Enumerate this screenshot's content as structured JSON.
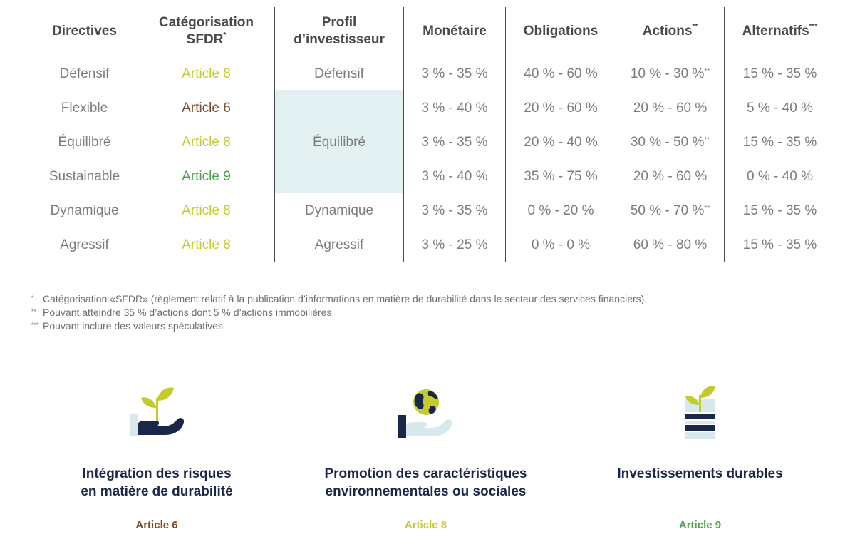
{
  "table": {
    "headers": [
      {
        "label": "Directives",
        "sup": ""
      },
      {
        "label": "Catégorisation SFDR",
        "sup": "*"
      },
      {
        "label": "Profil d’investisseur",
        "sup": ""
      },
      {
        "label": "Monétaire",
        "sup": ""
      },
      {
        "label": "Obligations",
        "sup": ""
      },
      {
        "label": "Actions",
        "sup": "**"
      },
      {
        "label": "Alternatifs",
        "sup": "***"
      }
    ],
    "rows": [
      {
        "directive": "Défensif",
        "sfdr": "Article 8",
        "sfdr_class": "a8",
        "monetaire": "3 % - 35 %",
        "obligations": "40 % - 60 %",
        "actions": "10 % - 30 %",
        "actions_sup": "**",
        "alternatifs": "15 % - 35 %"
      },
      {
        "directive": "Flexible",
        "sfdr": "Article 6",
        "sfdr_class": "a6",
        "monetaire": "3 % - 40 %",
        "obligations": "20 % - 60 %",
        "actions": "20 % - 60 %",
        "actions_sup": "",
        "alternatifs": "5 % - 40 %"
      },
      {
        "directive": "Équilibré",
        "sfdr": "Article 8",
        "sfdr_class": "a8",
        "monetaire": "3 % - 35 %",
        "obligations": "20 % - 40 %",
        "actions": "30 % - 50 %",
        "actions_sup": "**",
        "alternatifs": "15 % - 35 %"
      },
      {
        "directive": "Sustainable",
        "sfdr": "Article 9",
        "sfdr_class": "a9",
        "monetaire": "3 % - 40 %",
        "obligations": "35 % - 75 %",
        "actions": "20 % - 60 %",
        "actions_sup": "",
        "alternatifs": "0 % - 40 %"
      },
      {
        "directive": "Dynamique",
        "sfdr": "Article 8",
        "sfdr_class": "a8",
        "monetaire": "3 % - 35 %",
        "obligations": "0 % - 20 %",
        "actions": "50 % - 70 %",
        "actions_sup": "**",
        "alternatifs": "15 % - 35 %"
      },
      {
        "directive": "Agressif",
        "sfdr": "Article 8",
        "sfdr_class": "a8",
        "monetaire": "3 % - 25 %",
        "obligations": "0 % - 0 %",
        "actions": "60 % - 80 %",
        "actions_sup": "",
        "alternatifs": "15 % - 35 %"
      }
    ],
    "profiles": [
      "Défensif",
      "Équilibré",
      "Dynamique",
      "Agressif"
    ]
  },
  "footnotes": [
    {
      "mark": "*",
      "text": "Catégorisation «SFDR» (règlement relatif à la publication d’informations en matière de durabilité dans le secteur des services financiers)."
    },
    {
      "mark": "**",
      "text": "Pouvant atteindre 35 % d’actions dont 5 % d’actions immobilières"
    },
    {
      "mark": "***",
      "text": "Pouvant inclure des valeurs spéculatives"
    }
  ],
  "cards": [
    {
      "title_line1": "Intégration des risques",
      "title_line2": "en matière de durabilité",
      "article": "Article 6",
      "icon": "hand-plant-icon"
    },
    {
      "title_line1": "Promotion des caractéristiques",
      "title_line2": "environnementales ou sociales",
      "article": "Article 8",
      "icon": "hand-globe-icon"
    },
    {
      "title_line1": "Investissements durables",
      "title_line2": "",
      "article": "Article 9",
      "icon": "plant-stack-icon"
    }
  ],
  "colors": {
    "article6": "#7a4e2c",
    "article8": "#c4cb2d",
    "article9": "#4aa34a",
    "navy": "#1b2748",
    "merged_bg": "#e3f0f2"
  }
}
